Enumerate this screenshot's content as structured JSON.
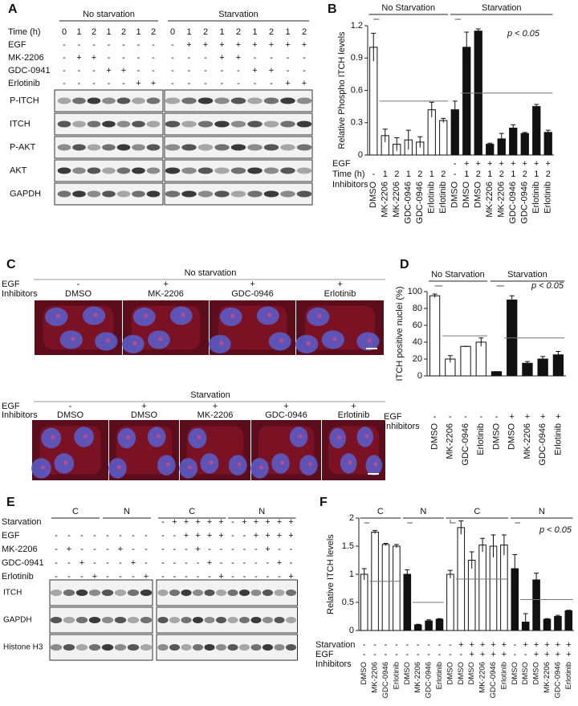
{
  "panel_labels": [
    "A",
    "B",
    "C",
    "D",
    "E",
    "F"
  ],
  "blot_a": {
    "row_labels": [
      "Time (h)",
      "EGF",
      "MK-2206",
      "GDC-0941",
      "Erlotinib"
    ],
    "blots": [
      {
        "groups": [
          {
            "label": "No starvation",
            "rows": [
              [
                "0",
                "1",
                "2",
                "1",
                "2",
                "1",
                "2"
              ],
              [
                "-",
                "-",
                "-",
                "-",
                "-",
                "-",
                "-"
              ],
              [
                "-",
                "+",
                "+",
                "-",
                "-",
                "-",
                "-"
              ],
              [
                "-",
                "-",
                "-",
                "+",
                "+",
                "-",
                "-"
              ],
              [
                "-",
                "-",
                "-",
                "-",
                "-",
                "+",
                "+"
              ]
            ]
          }
        ]
      },
      {
        "groups": [
          {
            "label": "Starvation",
            "rows": [
              [
                "0",
                "1",
                "2",
                "1",
                "2",
                "1",
                "2",
                "1",
                "2"
              ],
              [
                "-",
                "+",
                "+",
                "+",
                "+",
                "+",
                "+",
                "+",
                "+"
              ],
              [
                "-",
                "-",
                "-",
                "+",
                "+",
                "-",
                "-",
                "-",
                "-"
              ],
              [
                "-",
                "-",
                "-",
                "-",
                "-",
                "+",
                "+",
                "-",
                "-"
              ],
              [
                "-",
                "-",
                "-",
                "-",
                "-",
                "-",
                "-",
                "+",
                "+"
              ]
            ]
          }
        ]
      }
    ],
    "bands": [
      "P-ITCH",
      "ITCH",
      "P-AKT",
      "AKT",
      "GAPDH"
    ]
  },
  "micrographs_c": {
    "row_labels": [
      "EGF",
      "Inhibitors"
    ],
    "panels": [
      {
        "title": "No starvation",
        "egf": [
          "-",
          "+",
          "+",
          "+"
        ],
        "inhibitors": [
          "DMSO",
          "MK-2206",
          "GDC-0946",
          "Erlotinib"
        ]
      },
      {
        "title": "Starvation",
        "egf": [
          "-",
          "+",
          "+",
          "+",
          "+"
        ],
        "inhibitors": [
          "DMSO",
          "DMSO",
          "MK-2206",
          "GDC-0946",
          "Erlotinib"
        ]
      }
    ]
  },
  "blot_e": {
    "row_labels": [
      "Starvation",
      "EGF",
      "MK-2206",
      "GDC-0941",
      "Erlotinib"
    ],
    "blots": [
      {
        "groups": [
          {
            "label": "C",
            "rows": [
              [
                null,
                null,
                null,
                null
              ],
              [
                "-",
                "-",
                "-",
                "-"
              ],
              [
                "-",
                "+",
                "-",
                "-"
              ],
              [
                "-",
                "-",
                "+",
                "-"
              ],
              [
                "-",
                "-",
                "-",
                "+"
              ]
            ]
          },
          {
            "label": "N",
            "rows": [
              [
                null,
                null,
                null,
                null
              ],
              [
                "-",
                "-",
                "-",
                "-"
              ],
              [
                "-",
                "+",
                "-",
                "-"
              ],
              [
                "-",
                "-",
                "+",
                "-"
              ],
              [
                "-",
                "-",
                "-",
                "+"
              ]
            ]
          }
        ]
      },
      {
        "groups": [
          {
            "label": "C",
            "rows": [
              [
                "-",
                "+",
                "+",
                "+",
                "+",
                "+"
              ],
              [
                "-",
                "-",
                "+",
                "+",
                "+",
                "+"
              ],
              [
                "-",
                "-",
                "-",
                "+",
                "-",
                "-"
              ],
              [
                "-",
                "-",
                "-",
                "-",
                "+",
                "-"
              ],
              [
                "-",
                "-",
                "-",
                "-",
                "-",
                "+"
              ]
            ]
          },
          {
            "label": "N",
            "rows": [
              [
                "-",
                "+",
                "+",
                "+",
                "+",
                "+"
              ],
              [
                "-",
                "-",
                "+",
                "+",
                "+",
                "+"
              ],
              [
                "-",
                "-",
                "-",
                "+",
                "-",
                "-"
              ],
              [
                "-",
                "-",
                "-",
                "-",
                "+",
                "-"
              ],
              [
                "-",
                "-",
                "-",
                "-",
                "-",
                "+"
              ]
            ]
          }
        ]
      }
    ],
    "bands": [
      "ITCH",
      "GAPDH",
      "Histone H3"
    ]
  },
  "chart_data": [
    {
      "type": "bar",
      "y_label": "Relative Phospho ITCH levels",
      "groups": [
        "No Starvation",
        "Starvation"
      ],
      "annotation": "p < 0.05",
      "categories": [
        "DMSO",
        "MK-2206",
        "MK-2206",
        "GDC-0946",
        "GDC-0946",
        "Erlotinib",
        "Erlotinib",
        "DMSO",
        "DMSO",
        "DMSO",
        "MK-2206",
        "MK-2206",
        "GDC-0946",
        "GDC-0946",
        "Erlotinib",
        "Erlotinib"
      ],
      "categories_label": "Inhibitors",
      "values": [
        1.0,
        0.18,
        0.1,
        0.14,
        0.12,
        0.42,
        0.32,
        0.42,
        1.0,
        1.15,
        0.1,
        0.15,
        0.25,
        0.2,
        0.45,
        0.21
      ],
      "errors": [
        0.13,
        0.06,
        0.06,
        0.09,
        0.05,
        0.07,
        0.02,
        0.08,
        0.14,
        0.02,
        0.01,
        0.05,
        0.03,
        0.01,
        0.02,
        0.02
      ],
      "bar_colors": [
        "#ffffff",
        "#ffffff",
        "#ffffff",
        "#ffffff",
        "#ffffff",
        "#ffffff",
        "#ffffff",
        "#111111",
        "#111111",
        "#111111",
        "#111111",
        "#111111",
        "#111111",
        "#111111",
        "#111111",
        "#111111"
      ],
      "label_rows": [
        {
          "label": "EGF",
          "values": [
            null,
            null,
            null,
            null,
            null,
            null,
            null,
            "-",
            "+",
            "+",
            "+",
            "+",
            "+",
            "+",
            "+",
            "+"
          ]
        },
        {
          "label": "Time (h)",
          "values": [
            "-",
            "1",
            "2",
            "1",
            "2",
            "1",
            "2",
            "-",
            "1",
            "2",
            "1",
            "2",
            "1",
            "2",
            "1",
            "2"
          ]
        }
      ],
      "ylim": [
        0,
        1.2
      ],
      "yticks": [
        0,
        0.3,
        0.6,
        0.9,
        1.2
      ]
    },
    {
      "type": "bar",
      "y_label": "ITCH positive nuclei (%)",
      "groups": [
        "No Starvation",
        "Starvation"
      ],
      "annotation": "p < 0.05",
      "categories": [
        "DMSO",
        "MK-2206",
        "GDC-0946",
        "Erlotinib",
        "DMSO",
        "DMSO",
        "MK-2206",
        "GDC-0946",
        "Erlotinib"
      ],
      "categories_label": "Inhibitors",
      "values": [
        95,
        20,
        35,
        40,
        5,
        90,
        15,
        20,
        25
      ],
      "errors": [
        2,
        4,
        0,
        5,
        0,
        5,
        2,
        3,
        4
      ],
      "bar_colors": [
        "#ffffff",
        "#ffffff",
        "#ffffff",
        "#ffffff",
        "#111111",
        "#111111",
        "#111111",
        "#111111",
        "#111111"
      ],
      "label_rows": [
        {
          "label": "EGF",
          "values": [
            "-",
            "-",
            "-",
            "-",
            "-",
            "+",
            "+",
            "+",
            "+"
          ]
        }
      ],
      "ylim": [
        0,
        100
      ],
      "yticks": [
        0,
        20,
        40,
        60,
        80,
        100
      ]
    },
    {
      "type": "bar",
      "y_label": "Relative ITCH levels",
      "groups": [
        "C",
        "N",
        "C",
        "N"
      ],
      "annotation": "p < 0.05",
      "categories": [
        "DMSO",
        "MK-2206",
        "GDC-0946",
        "Erlotinib",
        "DMSO",
        "MK-2206",
        "GDC-0946",
        "Erlotinib",
        "DMSO",
        "DMSO",
        "DMSO",
        "MK-2206",
        "GDC-0946",
        "Erlotinib",
        "DMSO",
        "DMSO",
        "DMSO",
        "MK-2206",
        "GDC-0946",
        "Erlotinib"
      ],
      "categories_label": "Inhibitors",
      "values": [
        1.0,
        1.75,
        1.53,
        1.5,
        1.0,
        0.1,
        0.17,
        0.2,
        1.0,
        1.83,
        1.25,
        1.52,
        1.5,
        1.52,
        1.1,
        0.15,
        0.9,
        0.2,
        0.25,
        0.35
      ],
      "errors": [
        0.1,
        0.03,
        0.02,
        0.03,
        0.08,
        0.01,
        0.02,
        0.01,
        0.07,
        0.12,
        0.15,
        0.12,
        0.2,
        0.18,
        0.25,
        0.15,
        0.12,
        0.01,
        0.02,
        0.01
      ],
      "bar_colors": [
        "#ffffff",
        "#ffffff",
        "#ffffff",
        "#ffffff",
        "#111111",
        "#111111",
        "#111111",
        "#111111",
        "#ffffff",
        "#ffffff",
        "#ffffff",
        "#ffffff",
        "#ffffff",
        "#ffffff",
        "#111111",
        "#111111",
        "#111111",
        "#111111",
        "#111111",
        "#111111"
      ],
      "label_rows": [
        {
          "label": "Starvation",
          "values": [
            "-",
            "-",
            "-",
            "-",
            "-",
            "-",
            "-",
            "-",
            "-",
            "+",
            "+",
            "+",
            "+",
            "+",
            "-",
            "+",
            "+",
            "+",
            "+",
            "+"
          ]
        },
        {
          "label": "EGF",
          "values": [
            "-",
            "-",
            "-",
            "-",
            "-",
            "-",
            "-",
            "-",
            "-",
            "-",
            "+",
            "+",
            "+",
            "+",
            "-",
            "-",
            "+",
            "+",
            "+",
            "+"
          ]
        }
      ],
      "ylim": [
        0,
        2
      ],
      "yticks": [
        0,
        0.5,
        1,
        1.5,
        2
      ]
    }
  ]
}
